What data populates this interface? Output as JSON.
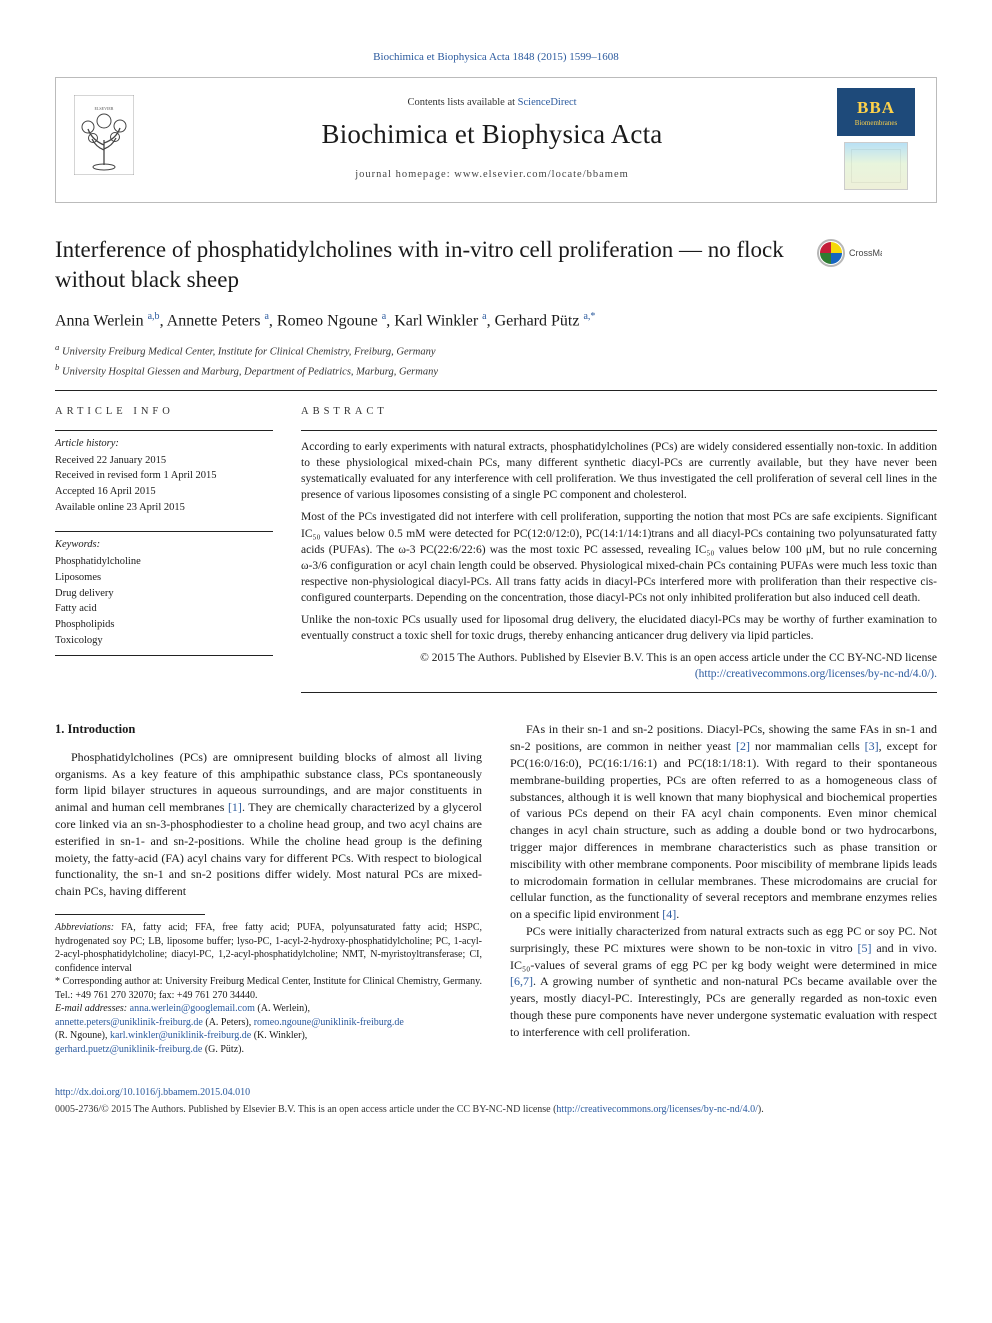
{
  "top_citation": "Biochimica et Biophysica Acta 1848 (2015) 1599–1608",
  "header": {
    "contents_line_prefix": "Contents lists available at ",
    "contents_link": "ScienceDirect",
    "journal_title": "Biochimica et Biophysica Acta",
    "homepage_label": "journal homepage: ",
    "homepage_url": "www.elsevier.com/locate/bbamem",
    "bba_top": "Biochimica et Biophysica Acta",
    "bba_main": "BBA",
    "bba_sub": "Biomembranes"
  },
  "article": {
    "title": "Interference of phosphatidylcholines with in-vitro cell proliferation — no flock without black sheep",
    "authors_html": "Anna Werlein <sup>a,b</sup>, Annette Peters <sup>a</sup>, Romeo Ngoune <sup>a</sup>, Karl Winkler <sup>a</sup>, Gerhard Pütz <sup>a,*</sup>",
    "affiliations": [
      "a  University Freiburg Medical Center, Institute for Clinical Chemistry, Freiburg, Germany",
      "b  University Hospital Giessen and Marburg, Department of Pediatrics, Marburg, Germany"
    ],
    "crossmark_label": "CrossMark"
  },
  "info": {
    "label": "ARTICLE INFO",
    "history_head": "Article history:",
    "history": [
      "Received 22 January 2015",
      "Received in revised form 1 April 2015",
      "Accepted 16 April 2015",
      "Available online 23 April 2015"
    ],
    "keywords_head": "Keywords:",
    "keywords": [
      "Phosphatidylcholine",
      "Liposomes",
      "Drug delivery",
      "Fatty acid",
      "Phospholipids",
      "Toxicology"
    ]
  },
  "abstract": {
    "label": "ABSTRACT",
    "p1": "According to early experiments with natural extracts, phosphatidylcholines (PCs) are widely considered essentially non-toxic. In addition to these physiological mixed-chain PCs, many different synthetic diacyl-PCs are currently available, but they have never been systematically evaluated for any interference with cell proliferation. We thus investigated the cell proliferation of several cell lines in the presence of various liposomes consisting of a single PC component and cholesterol.",
    "p2": "Most of the PCs investigated did not interfere with cell proliferation, supporting the notion that most PCs are safe excipients. Significant IC₅₀ values below 0.5 mM were detected for PC(12:0/12:0), PC(14:1/14:1)trans and all diacyl-PCs containing two polyunsaturated fatty acids (PUFAs). The ω-3 PC(22:6/22:6) was the most toxic PC assessed, revealing IC₅₀ values below 100 μM, but no rule concerning ω-3/6 configuration or acyl chain length could be observed. Physiological mixed-chain PCs containing PUFAs were much less toxic than respective non-physiological diacyl-PCs. All trans fatty acids in diacyl-PCs interfered more with proliferation than their respective cis-configured counterparts. Depending on the concentration, those diacyl-PCs not only inhibited proliferation but also induced cell death.",
    "p3": "Unlike the non-toxic PCs usually used for liposomal drug delivery, the elucidated diacyl-PCs may be worthy of further examination to eventually construct a toxic shell for toxic drugs, thereby enhancing anticancer drug delivery via lipid particles.",
    "copyright": "© 2015 The Authors. Published by Elsevier B.V. This is an open access article under the CC BY-NC-ND license",
    "license_url": "(http://creativecommons.org/licenses/by-nc-nd/4.0/)."
  },
  "body": {
    "section_heading": "1. Introduction",
    "col1_p1": "Phosphatidylcholines (PCs) are omnipresent building blocks of almost all living organisms. As a key feature of this amphipathic substance class, PCs spontaneously form lipid bilayer structures in aqueous surroundings, and are major constituents in animal and human cell membranes [1]. They are chemically characterized by a glycerol core linked via an sn-3-phosphodiester to a choline head group, and two acyl chains are esterified in sn-1- and sn-2-positions. While the choline head group is the defining moiety, the fatty-acid (FA) acyl chains vary for different PCs. With respect to biological functionality, the sn-1 and sn-2 positions differ widely. Most natural PCs are mixed-chain PCs, having different",
    "col2_p1": "FAs in their sn-1 and sn-2 positions. Diacyl-PCs, showing the same FAs in sn-1 and sn-2 positions, are common in neither yeast [2] nor mammalian cells [3], except for PC(16:0/16:0), PC(16:1/16:1) and PC(18:1/18:1). With regard to their spontaneous membrane-building properties, PCs are often referred to as a homogeneous class of substances, although it is well known that many biophysical and biochemical properties of various PCs depend on their FA acyl chain components. Even minor chemical changes in acyl chain structure, such as adding a double bond or two hydrocarbons, trigger major differences in membrane characteristics such as phase transition or miscibility with other membrane components. Poor miscibility of membrane lipids leads to microdomain formation in cellular membranes. These microdomains are crucial for cellular function, as the functionality of several receptors and membrane enzymes relies on a specific lipid environment [4].",
    "col2_p2": "PCs were initially characterized from natural extracts such as egg PC or soy PC. Not surprisingly, these PC mixtures were shown to be non-toxic in vitro [5] and in vivo. IC₅₀-values of several grams of egg PC per kg body weight were determined in mice [6,7]. A growing number of synthetic and non-natural PCs became available over the years, mostly diacyl-PC. Interestingly, PCs are generally regarded as non-toxic even though these pure components have never undergone systematic evaluation with respect to interference with cell proliferation."
  },
  "footnotes": {
    "abbrev_head": "Abbreviations:",
    "abbrev_text": " FA, fatty acid; FFA, free fatty acid; PUFA, polyunsaturated fatty acid; HSPC, hydrogenated soy PC; LB, liposome buffer; lyso-PC, 1-acyl-2-hydroxy-phosphatidylcholine; PC, 1-acyl-2-acyl-phosphatidylcholine; diacyl-PC, 1,2-acyl-phosphatidylcholine; NMT, N-myristoyltransferase; CI, confidence interval",
    "corr_head": "* Corresponding author at: University Freiburg Medical Center, Institute for Clinical Chemistry, Germany. Tel.: +49 761 270 32070; fax: +49 761 270 34440.",
    "emails_head": "E-mail addresses: ",
    "emails": [
      {
        "addr": "anna.werlein@googlemail.com",
        "who": " (A. Werlein),"
      },
      {
        "addr": "annette.peters@uniklinik-freiburg.de",
        "who": " (A. Peters), "
      },
      {
        "addr": "romeo.ngoune@uniklinik-freiburg.de",
        "who": " (R. Ngoune), "
      },
      {
        "addr": "karl.winkler@uniklinik-freiburg.de",
        "who": " (K. Winkler),"
      },
      {
        "addr": "gerhard.puetz@uniklinik-freiburg.de",
        "who": " (G. Pütz)."
      }
    ]
  },
  "footer": {
    "doi": "http://dx.doi.org/10.1016/j.bbamem.2015.04.010",
    "copy": "0005-2736/© 2015 The Authors. Published by Elsevier B.V. This is an open access article under the CC BY-NC-ND license (",
    "license_link": "http://creativecommons.org/licenses/by-nc-nd/4.0/",
    "copy_end": ")."
  },
  "colors": {
    "link": "#2b5a9e",
    "text": "#1a1a1a",
    "border": "#bbbbbb",
    "rule": "#222222",
    "bba_bg": "#1e4a7a",
    "bba_gold": "#ffd24a",
    "crossmark_ring": "#b22020",
    "crossmark_quad1": "#f5d90a",
    "crossmark_quad2": "#c41e3a",
    "crossmark_quad3": "#2e7d32",
    "crossmark_quad4": "#1565c0"
  },
  "typography": {
    "body_pt": 12,
    "title_pt": 23,
    "journal_title_pt": 27,
    "authors_pt": 16,
    "abstract_pt": 11.5,
    "small_pt": 10.5,
    "footnote_pt": 10
  }
}
